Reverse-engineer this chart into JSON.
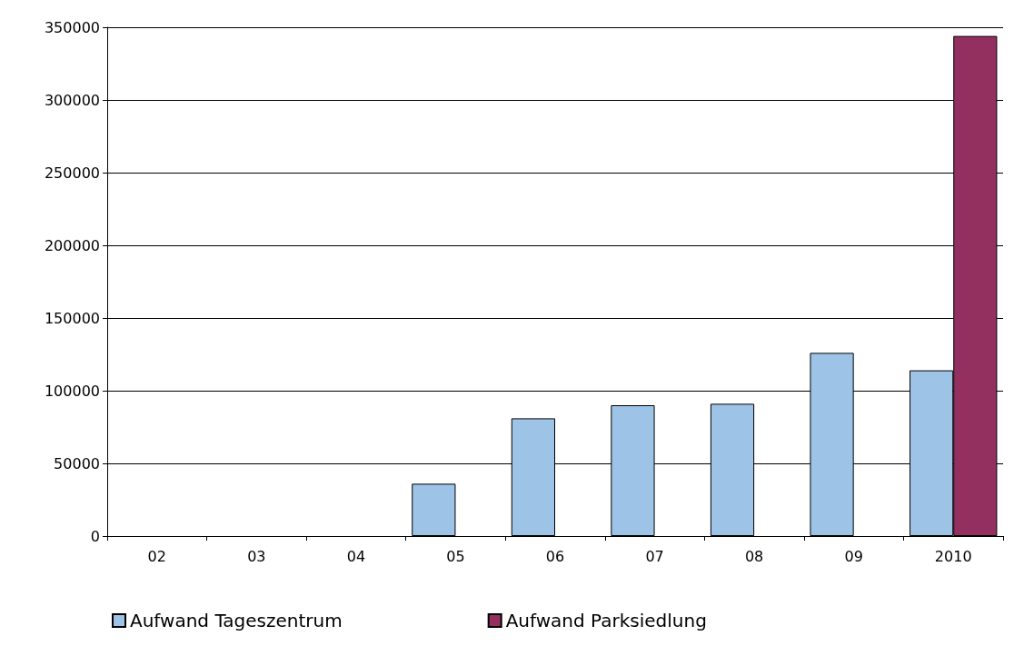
{
  "chart_data": {
    "type": "bar",
    "categories": [
      "02",
      "03",
      "04",
      "05",
      "06",
      "07",
      "08",
      "09",
      "2010"
    ],
    "series": [
      {
        "name": "Aufwand Tageszentrum",
        "color": "#9dc3e6",
        "values": [
          null,
          null,
          null,
          36000,
          81000,
          90000,
          91000,
          126000,
          114000
        ]
      },
      {
        "name": "Aufwand Parksiedlung",
        "color": "#943060",
        "values": [
          null,
          null,
          null,
          null,
          null,
          null,
          null,
          null,
          344000
        ]
      }
    ],
    "ylim": [
      0,
      350000
    ],
    "yticks": [
      0,
      50000,
      100000,
      150000,
      200000,
      250000,
      300000,
      350000
    ],
    "grid": "y",
    "legend": "bottom"
  }
}
